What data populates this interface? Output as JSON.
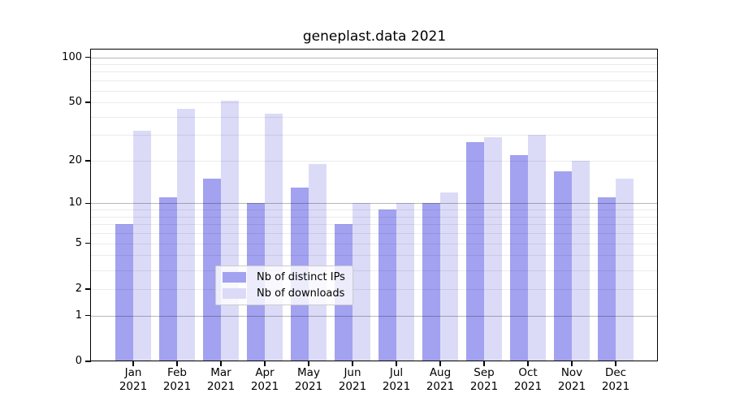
{
  "title": "geneplast.data 2021",
  "chart_data": {
    "type": "bar",
    "title": "geneplast.data 2021",
    "categories": [
      "Jan 2021",
      "Feb 2021",
      "Mar 2021",
      "Apr 2021",
      "May 2021",
      "Jun 2021",
      "Jul 2021",
      "Aug 2021",
      "Sep 2021",
      "Oct 2021",
      "Nov 2021",
      "Dec 2021"
    ],
    "x_tick_months": [
      "Jan",
      "Feb",
      "Mar",
      "Apr",
      "May",
      "Jun",
      "Jul",
      "Aug",
      "Sep",
      "Oct",
      "Nov",
      "Dec"
    ],
    "x_tick_year": "2021",
    "series": [
      {
        "name": "Nb of distinct IPs",
        "color": "#a2a2f0",
        "values": [
          7,
          11,
          15,
          10,
          13,
          7,
          9,
          10,
          27,
          22,
          17,
          11
        ]
      },
      {
        "name": "Nb of downloads",
        "color": "#dbdbf8",
        "values": [
          32,
          45,
          51,
          42,
          19,
          10,
          10,
          12,
          29,
          30,
          20,
          15
        ]
      }
    ],
    "xlabel": "",
    "ylabel": "",
    "y_scale": "log1p",
    "ylim": [
      0,
      112
    ],
    "y_tick_values": [
      0,
      1,
      2,
      5,
      10,
      20,
      50,
      100
    ],
    "y_tick_labels": [
      "0",
      "1",
      "2",
      "5",
      "10",
      "20",
      "50",
      "100"
    ],
    "y_major_gridlines": [
      1,
      10,
      100
    ],
    "y_minor_gridlines": [
      2,
      3,
      4,
      5,
      6,
      7,
      8,
      9,
      20,
      30,
      40,
      50,
      60,
      70,
      80,
      90
    ],
    "grid": true,
    "grid_above_bars": true,
    "legend_position": "inside lower-center",
    "background_color": "#ffffff",
    "text_color": "#000000"
  },
  "legend": {
    "items": [
      {
        "label": "Nb of distinct IPs",
        "color": "#a2a2f0"
      },
      {
        "label": "Nb of downloads",
        "color": "#dbdbf8"
      }
    ]
  }
}
